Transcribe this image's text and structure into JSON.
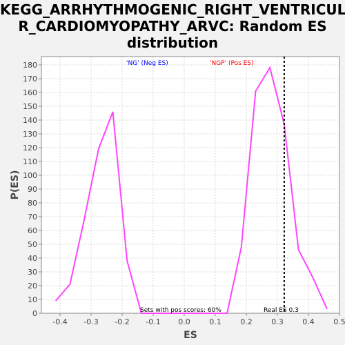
{
  "title": "KEGG_ARRHYTHMOGENIC_RIGHT_VENTRICULA\nR_CARDIOMYOPATHY_ARVC: Random ES\ndistribution",
  "colors": {
    "line": "#ff44ff",
    "neg": "#0000ff",
    "pos": "#ff0000",
    "grid": "#d8d8d8",
    "frame": "#888888"
  },
  "chart_data": {
    "type": "line",
    "xlabel": "ES",
    "ylabel": "P(ES)",
    "xlim": [
      -0.46,
      0.5
    ],
    "ylim": [
      0,
      186
    ],
    "grid": true,
    "x_ticks": [
      -0.4,
      -0.3,
      -0.2,
      -0.1,
      0.0,
      0.1,
      0.2,
      0.3,
      0.4,
      0.5
    ],
    "x_tick_labels": [
      "-0.4",
      "-0.3",
      "-0.2",
      "-0.1",
      "0.0",
      "0.1",
      "0.2",
      "0.3",
      "0.4",
      "0.5"
    ],
    "y_ticks": [
      0,
      10,
      20,
      30,
      40,
      50,
      60,
      70,
      80,
      90,
      100,
      110,
      120,
      130,
      140,
      150,
      160,
      170,
      180
    ],
    "series": [
      {
        "x": [
          -0.414,
          -0.368,
          -0.322,
          -0.276,
          -0.23,
          -0.184,
          -0.138,
          0.138,
          0.184,
          0.23,
          0.276,
          0.322,
          0.368,
          0.414,
          0.46
        ],
        "y": [
          9,
          21,
          68,
          119,
          146,
          38,
          0,
          0,
          48,
          161,
          178,
          137,
          46,
          26,
          3
        ]
      }
    ],
    "vline": {
      "x": 0.322,
      "label": "Real ES 0.3"
    },
    "annotations": {
      "neg_label": "'NG' (Neg ES)",
      "pos_label": "'NGP' (Pos ES)",
      "pos_scores": "Sets with pos scores: 60%"
    }
  }
}
